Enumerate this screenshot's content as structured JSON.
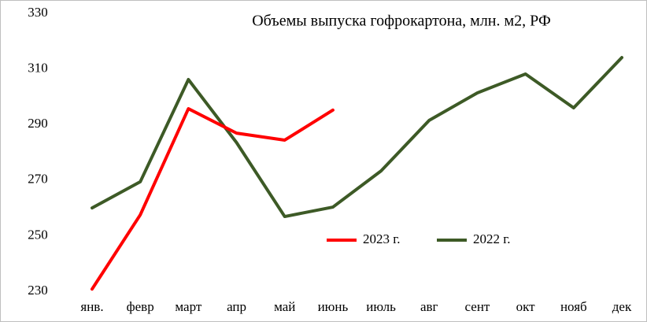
{
  "chart_data": {
    "type": "line",
    "title": "Объемы выпуска гофрокартона, млн. м2, РФ",
    "categories": [
      "янв.",
      "февр",
      "март",
      "апр",
      "май",
      "июнь",
      "июль",
      "авг",
      "сент",
      "окт",
      "нояб",
      "дек"
    ],
    "series": [
      {
        "name": "2023 г.",
        "color": "#ff0000",
        "values": [
          230.8,
          257.5,
          295.7,
          286.9,
          284.4,
          295.2,
          null,
          null,
          null,
          null,
          null,
          null
        ]
      },
      {
        "name": "2022 г.",
        "color": "#3d5a26",
        "values": [
          260,
          269.4,
          306.2,
          283.5,
          256.9,
          260.3,
          273.3,
          291.5,
          301.4,
          308.2,
          296,
          314.1
        ]
      }
    ],
    "ylim": [
      230,
      330
    ],
    "yticks": [
      230,
      250,
      270,
      290,
      310,
      330
    ],
    "grid": false
  }
}
